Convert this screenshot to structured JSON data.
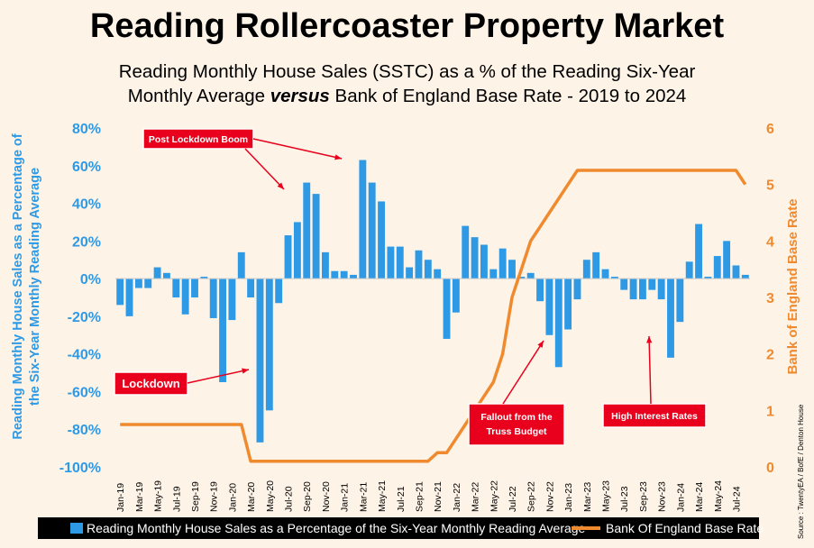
{
  "title": "Reading Rollercoaster Property Market",
  "subtitle": {
    "line1": "Reading Monthly House Sales (SSTC) as a % of the Reading Six-Year",
    "line2_pre": "Monthly Average ",
    "line2_em": "versus",
    "line2_post": " Bank of England Base Rate - 2019 to 2024"
  },
  "source": "Source : TwentyEA / BofE / Denton House",
  "legend": {
    "bars": "Reading Monthly House Sales as a Percentage of the Six-Year Monthly Reading Average",
    "line": "Bank Of England Base Rate"
  },
  "colors": {
    "bars": "#2e9ae6",
    "line": "#ef8a2f",
    "annotation": "#e8001c",
    "background": "#fdf3e6"
  },
  "chart_data": {
    "type": "bar",
    "combo": "bar + line (secondary axis)",
    "months": [
      "Jan-19",
      "Feb-19",
      "Mar-19",
      "Apr-19",
      "May-19",
      "Jun-19",
      "Jul-19",
      "Aug-19",
      "Sep-19",
      "Oct-19",
      "Nov-19",
      "Dec-19",
      "Jan-20",
      "Feb-20",
      "Mar-20",
      "Apr-20",
      "May-20",
      "Jun-20",
      "Jul-20",
      "Aug-20",
      "Sep-20",
      "Oct-20",
      "Nov-20",
      "Dec-20",
      "Jan-21",
      "Feb-21",
      "Mar-21",
      "Apr-21",
      "May-21",
      "Jun-21",
      "Jul-21",
      "Aug-21",
      "Sep-21",
      "Oct-21",
      "Nov-21",
      "Dec-21",
      "Jan-22",
      "Feb-22",
      "Mar-22",
      "Apr-22",
      "May-22",
      "Jun-22",
      "Jul-22",
      "Aug-22",
      "Sep-22",
      "Oct-22",
      "Nov-22",
      "Dec-22",
      "Jan-23",
      "Feb-23",
      "Mar-23",
      "Apr-23",
      "May-23",
      "Jun-23",
      "Jul-23",
      "Aug-23",
      "Sep-23",
      "Oct-23",
      "Nov-23",
      "Dec-23",
      "Jan-24",
      "Feb-24",
      "Mar-24",
      "Apr-24",
      "May-24",
      "Jun-24",
      "Jul-24",
      "Aug-24"
    ],
    "x_tick_labels": [
      "Jan-19",
      "Mar-19",
      "May-19",
      "Jul-19",
      "Sep-19",
      "Nov-19",
      "Jan-20",
      "Mar-20",
      "May-20",
      "Jul-20",
      "Sep-20",
      "Nov-20",
      "Jan-21",
      "Mar-21",
      "May-21",
      "Jul-21",
      "Sep-21",
      "Nov-21",
      "Jan-22",
      "Mar-22",
      "May-22",
      "Jul-22",
      "Sep-22",
      "Nov-22",
      "Jan-23",
      "Mar-23",
      "May-23",
      "Jul-23",
      "Sep-23",
      "Nov-23",
      "Jan-24",
      "Mar-24",
      "May-24",
      "Jul-24"
    ],
    "series": [
      {
        "name": "Reading Monthly House Sales as a Percentage of the Six-Year Monthly Reading Average",
        "type": "bar",
        "axis": "left",
        "values": [
          -14,
          -20,
          -5,
          -5,
          6,
          3,
          -10,
          -19,
          -10,
          1,
          -21,
          -55,
          -22,
          14,
          -10,
          -87,
          -70,
          -13,
          23,
          30,
          51,
          45,
          14,
          4,
          4,
          2,
          63,
          51,
          41,
          17,
          17,
          6,
          15,
          10,
          5,
          -32,
          -18,
          28,
          22,
          18,
          5,
          16,
          10,
          1,
          3,
          -12,
          -30,
          -47,
          -27,
          -11,
          10,
          14,
          5,
          1,
          -6,
          -11,
          -11,
          -6,
          -11,
          -42,
          -23,
          9,
          29,
          1,
          12,
          20,
          7,
          2
        ]
      },
      {
        "name": "Bank Of England Base Rate",
        "type": "line",
        "axis": "right",
        "values": [
          0.75,
          0.75,
          0.75,
          0.75,
          0.75,
          0.75,
          0.75,
          0.75,
          0.75,
          0.75,
          0.75,
          0.75,
          0.75,
          0.75,
          0.1,
          0.1,
          0.1,
          0.1,
          0.1,
          0.1,
          0.1,
          0.1,
          0.1,
          0.1,
          0.1,
          0.1,
          0.1,
          0.1,
          0.1,
          0.1,
          0.1,
          0.1,
          0.1,
          0.1,
          0.25,
          0.25,
          0.5,
          0.75,
          1.0,
          1.25,
          1.5,
          2.0,
          3.0,
          3.5,
          4.0,
          4.25,
          4.5,
          4.75,
          5.0,
          5.25,
          5.25,
          5.25,
          5.25,
          5.25,
          5.25,
          5.25,
          5.25,
          5.25,
          5.25,
          5.25,
          5.25,
          5.25,
          5.25,
          5.25,
          5.25,
          5.25,
          5.25,
          5.0
        ]
      }
    ],
    "y_left": {
      "label": "Reading Monthly House Sales as a Percentage of the Six-Year Monthly Reading Average",
      "min": -100,
      "max": 80,
      "step": 20,
      "tick_labels": [
        "80%",
        "60%",
        "40%",
        "20%",
        "0%",
        "-20%",
        "-40%",
        "-60%",
        "-80%",
        "-100%"
      ]
    },
    "y_right": {
      "label": "Bank of England Base Rate",
      "min": 0,
      "max": 6,
      "step": 1,
      "tick_labels": [
        "6",
        "5",
        "4",
        "3",
        "2",
        "1",
        "0"
      ]
    },
    "grid": false,
    "legend_placement": "bottom",
    "annotations": [
      {
        "text": "Post Lockdown Boom"
      },
      {
        "text": "Lockdown"
      },
      {
        "text": "Fallout from the Truss Budget"
      },
      {
        "text": "High Interest Rates"
      }
    ]
  }
}
